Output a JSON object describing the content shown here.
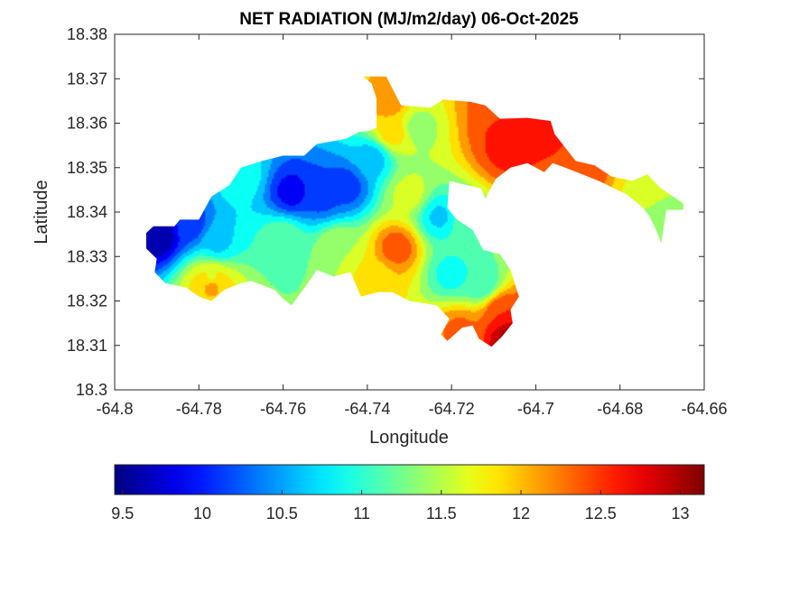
{
  "chart_data": {
    "type": "heatmap",
    "title": "NET RADIATION (MJ/m2/day) 06-Oct-2025",
    "xlabel": "Longitude",
    "ylabel": "Latitude",
    "xlim": [
      -64.8,
      -64.66
    ],
    "ylim": [
      18.3,
      18.38
    ],
    "xticks": [
      -64.8,
      -64.78,
      -64.76,
      -64.74,
      -64.72,
      -64.7,
      -64.68,
      -64.66
    ],
    "xtick_labels": [
      "-64.8",
      "-64.78",
      "-64.76",
      "-64.74",
      "-64.72",
      "-64.7",
      "-64.68",
      "-64.66"
    ],
    "yticks": [
      18.3,
      18.31,
      18.32,
      18.33,
      18.34,
      18.35,
      18.36,
      18.37,
      18.38
    ],
    "ytick_labels": [
      "18.3",
      "18.31",
      "18.32",
      "18.33",
      "18.34",
      "18.35",
      "18.36",
      "18.37",
      "18.38"
    ],
    "grid": false,
    "colormap": "jet",
    "colorbar": {
      "orientation": "horizontal",
      "location": "below",
      "range": [
        9.45,
        13.15
      ],
      "ticks": [
        9.5,
        10,
        10.5,
        11,
        11.5,
        12,
        12.5,
        13
      ],
      "tick_labels": [
        "9.5",
        "10",
        "10.5",
        "11",
        "11.5",
        "12",
        "12.5",
        "13"
      ]
    },
    "contour_levels": [
      9.5,
      9.75,
      10.0,
      10.25,
      10.5,
      10.75,
      11.0,
      11.25,
      11.5,
      11.75,
      12.0,
      12.25,
      12.5,
      12.75,
      13.0
    ],
    "field_minmax": [
      9.5,
      13.1
    ],
    "mask_outline": [
      [
        -64.7925,
        18.3353
      ],
      [
        -64.7908,
        18.3368
      ],
      [
        -64.7858,
        18.3368
      ],
      [
        -64.7845,
        18.3383
      ],
      [
        -64.78,
        18.3383
      ],
      [
        -64.777,
        18.3435
      ],
      [
        -64.7728,
        18.346
      ],
      [
        -64.77,
        18.35
      ],
      [
        -64.765,
        18.3515
      ],
      [
        -64.76,
        18.3527
      ],
      [
        -64.755,
        18.3527
      ],
      [
        -64.752,
        18.3553
      ],
      [
        -64.745,
        18.3565
      ],
      [
        -64.742,
        18.358
      ],
      [
        -64.7395,
        18.3583
      ],
      [
        -64.7378,
        18.359
      ],
      [
        -64.7378,
        18.3655
      ],
      [
        -64.739,
        18.369
      ],
      [
        -64.741,
        18.3705
      ],
      [
        -64.7355,
        18.3705
      ],
      [
        -64.732,
        18.364
      ],
      [
        -64.725,
        18.3635
      ],
      [
        -64.722,
        18.3653
      ],
      [
        -64.718,
        18.365
      ],
      [
        -64.7155,
        18.3648
      ],
      [
        -64.712,
        18.364
      ],
      [
        -64.7085,
        18.361
      ],
      [
        -64.702,
        18.3612
      ],
      [
        -64.6965,
        18.3605
      ],
      [
        -64.6955,
        18.3575
      ],
      [
        -64.693,
        18.3545
      ],
      [
        -64.6905,
        18.3515
      ],
      [
        -64.686,
        18.3505
      ],
      [
        -64.682,
        18.348
      ],
      [
        -64.677,
        18.347
      ],
      [
        -64.6735,
        18.3485
      ],
      [
        -64.6705,
        18.3455
      ],
      [
        -64.665,
        18.342
      ],
      [
        -64.665,
        18.3405
      ],
      [
        -64.669,
        18.3405
      ],
      [
        -64.6702,
        18.333
      ],
      [
        -64.6712,
        18.3355
      ],
      [
        -64.673,
        18.339
      ],
      [
        -64.6745,
        18.341
      ],
      [
        -64.6785,
        18.344
      ],
      [
        -64.685,
        18.347
      ],
      [
        -64.693,
        18.35
      ],
      [
        -64.696,
        18.351
      ],
      [
        -64.698,
        18.349
      ],
      [
        -64.702,
        18.351
      ],
      [
        -64.706,
        18.35
      ],
      [
        -64.7095,
        18.3475
      ],
      [
        -64.712,
        18.343
      ],
      [
        -64.713,
        18.3453
      ],
      [
        -64.7205,
        18.347
      ],
      [
        -64.721,
        18.341
      ],
      [
        -64.719,
        18.3385
      ],
      [
        -64.715,
        18.336
      ],
      [
        -64.7125,
        18.3315
      ],
      [
        -64.7085,
        18.3305
      ],
      [
        -64.706,
        18.327
      ],
      [
        -64.704,
        18.321
      ],
      [
        -64.706,
        18.318
      ],
      [
        -64.7055,
        18.315
      ],
      [
        -64.708,
        18.312
      ],
      [
        -64.7105,
        18.3097
      ],
      [
        -64.7135,
        18.3115
      ],
      [
        -64.715,
        18.3145
      ],
      [
        -64.7175,
        18.314
      ],
      [
        -64.721,
        18.311
      ],
      [
        -64.7225,
        18.3125
      ],
      [
        -64.7205,
        18.316
      ],
      [
        -64.7235,
        18.319
      ],
      [
        -64.73,
        18.32
      ],
      [
        -64.734,
        18.322
      ],
      [
        -64.7375,
        18.322
      ],
      [
        -64.7415,
        18.321
      ],
      [
        -64.744,
        18.3265
      ],
      [
        -64.748,
        18.3255
      ],
      [
        -64.752,
        18.327
      ],
      [
        -64.7545,
        18.3235
      ],
      [
        -64.758,
        18.319
      ],
      [
        -64.76,
        18.3205
      ],
      [
        -64.762,
        18.3225
      ],
      [
        -64.7675,
        18.3245
      ],
      [
        -64.77,
        18.324
      ],
      [
        -64.774,
        18.3225
      ],
      [
        -64.777,
        18.32
      ],
      [
        -64.78,
        18.321
      ],
      [
        -64.783,
        18.323
      ],
      [
        -64.788,
        18.324
      ],
      [
        -64.7905,
        18.3265
      ],
      [
        -64.79,
        18.3295
      ],
      [
        -64.7925,
        18.3318
      ]
    ],
    "hotspots": [
      {
        "lon": -64.7895,
        "lat": 18.335,
        "value": 9.5
      },
      {
        "lon": -64.782,
        "lat": 18.337,
        "value": 10.1
      },
      {
        "lon": -64.7755,
        "lat": 18.333,
        "value": 10.7
      },
      {
        "lon": -64.777,
        "lat": 18.325,
        "value": 11.7
      },
      {
        "lon": -64.777,
        "lat": 18.3235,
        "value": 12.1
      },
      {
        "lon": -64.758,
        "lat": 18.3445,
        "value": 9.9
      },
      {
        "lon": -64.751,
        "lat": 18.344,
        "value": 10.1
      },
      {
        "lon": -64.745,
        "lat": 18.3458,
        "value": 10.1
      },
      {
        "lon": -64.76,
        "lat": 18.334,
        "value": 11.2
      },
      {
        "lon": -64.77,
        "lat": 18.348,
        "value": 10.9
      },
      {
        "lon": -64.739,
        "lat": 18.352,
        "value": 10.6
      },
      {
        "lon": -64.747,
        "lat": 18.332,
        "value": 11.5
      },
      {
        "lon": -64.733,
        "lat": 18.332,
        "value": 12.4
      },
      {
        "lon": -64.738,
        "lat": 18.325,
        "value": 11.9
      },
      {
        "lon": -64.73,
        "lat": 18.344,
        "value": 11.6
      },
      {
        "lon": -64.734,
        "lat": 18.358,
        "value": 11.9
      },
      {
        "lon": -64.735,
        "lat": 18.365,
        "value": 12.2
      },
      {
        "lon": -64.728,
        "lat": 18.359,
        "value": 11.4
      },
      {
        "lon": -64.723,
        "lat": 18.339,
        "value": 10.7
      },
      {
        "lon": -64.716,
        "lat": 18.338,
        "value": 11.2
      },
      {
        "lon": -64.72,
        "lat": 18.326,
        "value": 10.9
      },
      {
        "lon": -64.713,
        "lat": 18.324,
        "value": 11.0
      },
      {
        "lon": -64.708,
        "lat": 18.359,
        "value": 12.6
      },
      {
        "lon": -64.707,
        "lat": 18.354,
        "value": 12.6
      },
      {
        "lon": -64.71,
        "lat": 18.363,
        "value": 12.3
      },
      {
        "lon": -64.701,
        "lat": 18.36,
        "value": 12.7
      },
      {
        "lon": -64.69,
        "lat": 18.35,
        "value": 12.5
      },
      {
        "lon": -64.673,
        "lat": 18.345,
        "value": 11.7
      },
      {
        "lon": -64.67,
        "lat": 18.339,
        "value": 11.3
      },
      {
        "lon": -64.706,
        "lat": 18.312,
        "value": 13.1
      },
      {
        "lon": -64.708,
        "lat": 18.3175,
        "value": 12.5
      },
      {
        "lon": -64.718,
        "lat": 18.3135,
        "value": 12.3
      }
    ]
  }
}
